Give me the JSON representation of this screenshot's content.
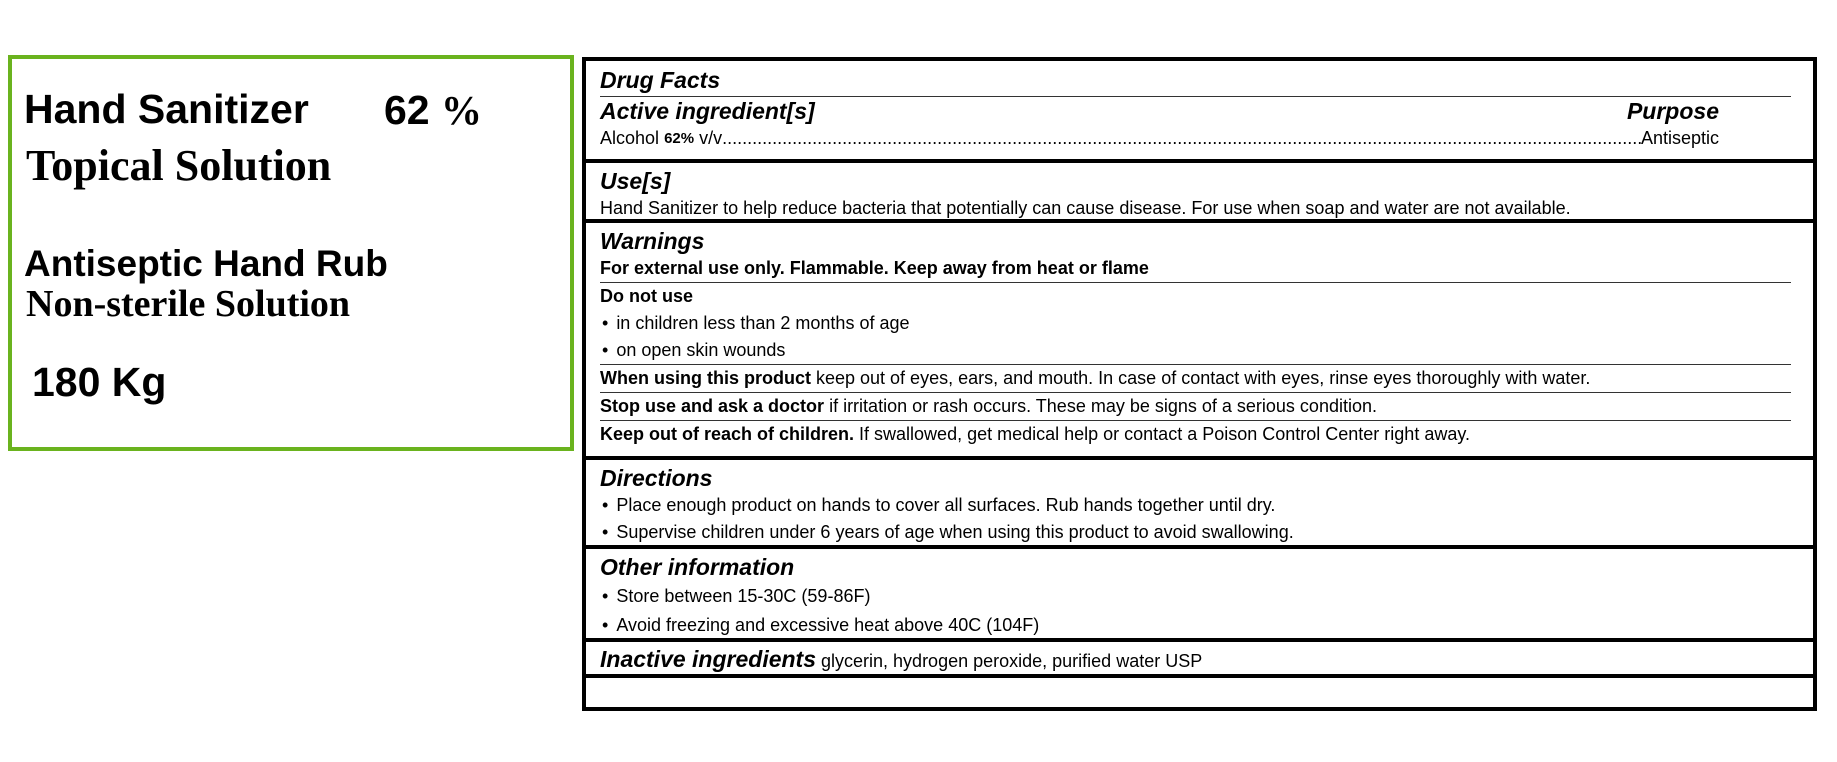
{
  "label": {
    "product_name": "Hand Sanitizer",
    "strength": "62",
    "percent_sign": "%",
    "form": "Topical Solution",
    "category": "Antiseptic Hand Rub",
    "sterility": "Non-sterile Solution",
    "quantity": "180 Kg",
    "border_color": "#6ab31e"
  },
  "drug_facts": {
    "title": "Drug Facts",
    "active": {
      "heading": "Active ingredient[s]",
      "purpose_heading": "Purpose",
      "ingredient_name": "Alcohol",
      "ingredient_strength": "62%",
      "ingredient_unit": "v/v",
      "leader": "..........................................................................................................................................................................................................................",
      "purpose": "Antiseptic"
    },
    "uses": {
      "heading": "Use[s]",
      "text": "Hand Sanitizer to help reduce bacteria that potentially can cause disease. For use when soap and water are not available."
    },
    "warnings": {
      "heading": "Warnings",
      "external": "For external use only. Flammable. Keep away from heat or flame",
      "do_not_use": "Do not use",
      "do_not_use_items": [
        "in children less than 2 months of age",
        "on open skin wounds"
      ],
      "when_using_label": "When using this product",
      "when_using_text": " keep out of eyes, ears, and mouth. In case of contact with eyes, rinse eyes thoroughly with water.",
      "stop_use_label": "Stop use and ask a doctor",
      "stop_use_text": " if irritation or rash occurs. These may be signs of a serious condition.",
      "keep_out_label": "Keep out of reach of children.",
      "keep_out_text": " If swallowed, get medical help or contact a Poison Control Center right away."
    },
    "directions": {
      "heading": "Directions",
      "items": [
        "Place enough product on hands to cover all surfaces. Rub hands together until dry.",
        "Supervise children under 6 years of age when using this product to avoid swallowing."
      ]
    },
    "other": {
      "heading": "Other information",
      "items": [
        "Store between 15-30C (59-86F)",
        "Avoid freezing and excessive heat above 40C (104F)"
      ]
    },
    "inactive": {
      "heading": "Inactive ingredients",
      "text": " glycerin, hydrogen peroxide, purified water USP"
    }
  }
}
